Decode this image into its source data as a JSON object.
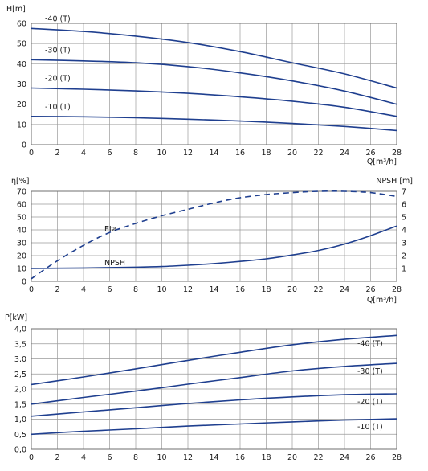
{
  "chart_data": [
    {
      "type": "line",
      "ylabel": "H[m]",
      "xlabel": "Q[m³/h]",
      "xlim": [
        0,
        28
      ],
      "ylim": [
        0,
        60
      ],
      "xticks": [
        "0",
        "2",
        "4",
        "6",
        "8",
        "10",
        "12",
        "14",
        "16",
        "18",
        "20",
        "22",
        "24",
        "26",
        "28"
      ],
      "yticks": [
        "0",
        "10",
        "20",
        "30",
        "40",
        "50",
        "60"
      ],
      "grid": true,
      "x": [
        0,
        4,
        8,
        12,
        16,
        20,
        24,
        28
      ],
      "series": [
        {
          "name": "-40 (T)",
          "values": [
            57.5,
            56.0,
            53.7,
            50.5,
            46.0,
            40.5,
            35.0,
            28.0
          ]
        },
        {
          "name": "-30 (T)",
          "values": [
            42.0,
            41.4,
            40.5,
            38.6,
            35.5,
            31.5,
            26.5,
            20.0
          ]
        },
        {
          "name": "-20 (T)",
          "values": [
            28.0,
            27.4,
            26.6,
            25.4,
            23.7,
            21.5,
            18.5,
            14.0
          ]
        },
        {
          "name": "-10 (T)",
          "values": [
            14.0,
            13.8,
            13.3,
            12.6,
            11.7,
            10.5,
            9.0,
            7.0
          ]
        }
      ]
    },
    {
      "type": "line",
      "ylabel": "η[%]",
      "ylabel_right": "NPSH [m]",
      "xlabel": "Q[m³/h]",
      "xlim": [
        0,
        28
      ],
      "ylim": [
        0,
        70
      ],
      "ylim_right": [
        0,
        7
      ],
      "xticks": [
        "0",
        "2",
        "4",
        "6",
        "8",
        "10",
        "12",
        "14",
        "16",
        "18",
        "20",
        "22",
        "24",
        "26",
        "28"
      ],
      "yticks": [
        "0",
        "10",
        "20",
        "30",
        "40",
        "50",
        "60",
        "70"
      ],
      "yticks_right": [
        "1",
        "2",
        "3",
        "4",
        "5",
        "6",
        "7"
      ],
      "grid": true,
      "x": [
        0,
        2,
        4,
        6,
        8,
        10,
        12,
        14,
        16,
        18,
        20,
        22,
        24,
        26,
        28
      ],
      "series": [
        {
          "name": "Eta",
          "style": "dashed",
          "axis": "left",
          "values": [
            2.0,
            16.0,
            28.0,
            38.0,
            45.0,
            51.0,
            56.0,
            61.0,
            65.0,
            67.5,
            69.0,
            70.0,
            70.0,
            69.0,
            66.0
          ]
        },
        {
          "name": "NPSH",
          "style": "solid",
          "axis": "right",
          "values": [
            1.0,
            1.02,
            1.04,
            1.07,
            1.1,
            1.15,
            1.25,
            1.38,
            1.55,
            1.75,
            2.05,
            2.4,
            2.9,
            3.55,
            4.3
          ]
        }
      ]
    },
    {
      "type": "line",
      "ylabel": "P[kW]",
      "xlabel": "",
      "xlim": [
        0,
        28
      ],
      "ylim": [
        0,
        4
      ],
      "xticks": [
        "0",
        "2",
        "4",
        "6",
        "8",
        "10",
        "12",
        "14",
        "16",
        "18",
        "20",
        "22",
        "24",
        "26",
        "28"
      ],
      "yticks": [
        "0,0",
        "0,5",
        "1,0",
        "1,5",
        "2,0",
        "2,5",
        "3,0",
        "3,5",
        "4,0"
      ],
      "grid": true,
      "x": [
        0,
        4,
        8,
        12,
        16,
        20,
        24,
        28
      ],
      "series": [
        {
          "name": "-40 (T)",
          "values": [
            2.15,
            2.4,
            2.67,
            2.95,
            3.22,
            3.47,
            3.65,
            3.78
          ]
        },
        {
          "name": "-30 (T)",
          "values": [
            1.5,
            1.72,
            1.93,
            2.16,
            2.38,
            2.6,
            2.75,
            2.85
          ]
        },
        {
          "name": "-20 (T)",
          "values": [
            1.1,
            1.24,
            1.38,
            1.52,
            1.64,
            1.74,
            1.81,
            1.84
          ]
        },
        {
          "name": "-10 (T)",
          "values": [
            0.5,
            0.6,
            0.68,
            0.77,
            0.84,
            0.91,
            0.97,
            1.01
          ]
        }
      ]
    }
  ],
  "colors": {
    "curve": "#1f3f8f",
    "grid": "#9a9a9a",
    "frame": "#6f6f6f"
  }
}
